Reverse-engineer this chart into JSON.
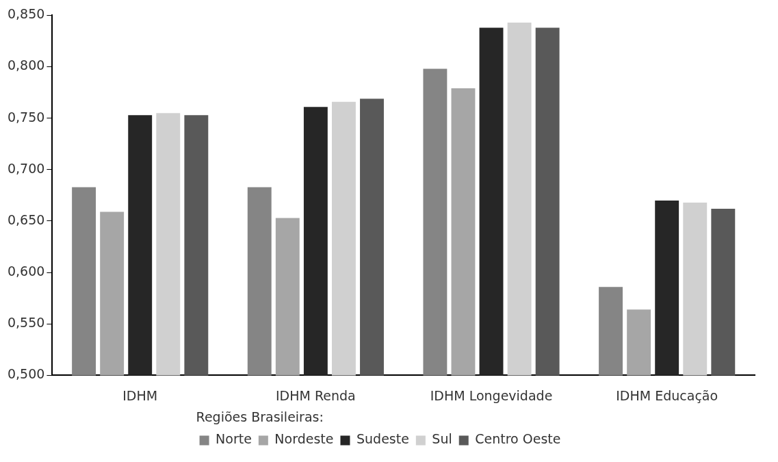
{
  "chart_data": {
    "type": "bar",
    "categories": [
      "IDHM",
      "IDHM Renda",
      "IDHM Longevidade",
      "IDHM Educação"
    ],
    "series": [
      {
        "name": "Norte",
        "color": "#858585",
        "values": [
          0.683,
          0.683,
          0.798,
          0.586
        ]
      },
      {
        "name": "Nordeste",
        "color": "#a6a6a6",
        "values": [
          0.659,
          0.653,
          0.779,
          0.564
        ]
      },
      {
        "name": "Sudeste",
        "color": "#262626",
        "values": [
          0.753,
          0.761,
          0.838,
          0.67
        ]
      },
      {
        "name": "Sul",
        "color": "#d0d0d0",
        "values": [
          0.755,
          0.766,
          0.843,
          0.668
        ]
      },
      {
        "name": "Centro Oeste",
        "color": "#595959",
        "values": [
          0.753,
          0.769,
          0.838,
          0.662
        ]
      }
    ],
    "ylim": [
      0.5,
      0.85
    ],
    "yticks": [
      {
        "value": 0.5,
        "label": "0,500"
      },
      {
        "value": 0.55,
        "label": "0,550"
      },
      {
        "value": 0.6,
        "label": "0,600"
      },
      {
        "value": 0.65,
        "label": "0,650"
      },
      {
        "value": 0.7,
        "label": "0,700"
      },
      {
        "value": 0.75,
        "label": "0,750"
      },
      {
        "value": 0.8,
        "label": "0,800"
      },
      {
        "value": 0.85,
        "label": "0,850"
      }
    ],
    "grid": false,
    "legend": "bottom",
    "legend_title": "Regiões Brasileiras:"
  }
}
